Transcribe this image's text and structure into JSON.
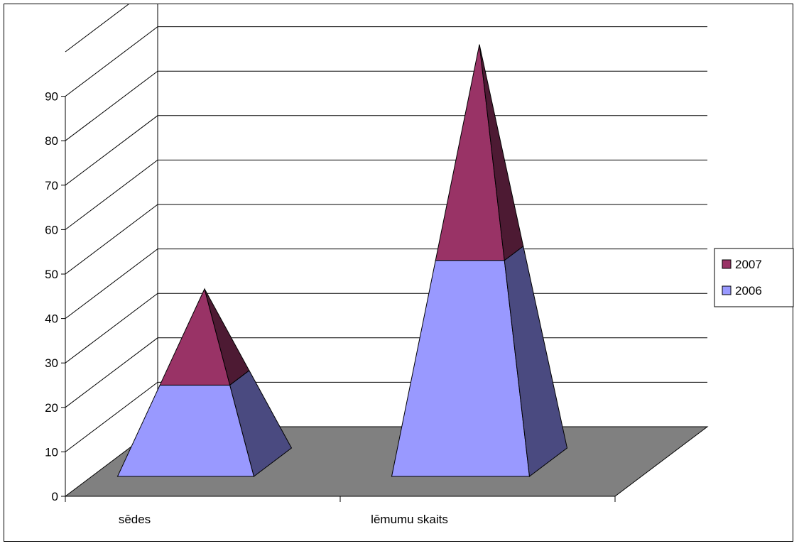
{
  "chart_data": {
    "type": "pyramid-3d-stacked",
    "categories": [
      "sēdes",
      "lēmumu skaits"
    ],
    "series": [
      {
        "name": "2006",
        "values": [
          19,
          47
        ],
        "color": "#9999ff",
        "side_color": "#4a4a80"
      },
      {
        "name": "2007",
        "values": [
          20,
          47
        ],
        "color": "#993366",
        "side_color": "#4d1a33"
      }
    ],
    "yticks": [
      0,
      10,
      20,
      30,
      40,
      50,
      60,
      70,
      80,
      90
    ],
    "ylim": [
      0,
      100
    ],
    "floor_color": "#808080",
    "grid": true,
    "legend_position": "right"
  }
}
